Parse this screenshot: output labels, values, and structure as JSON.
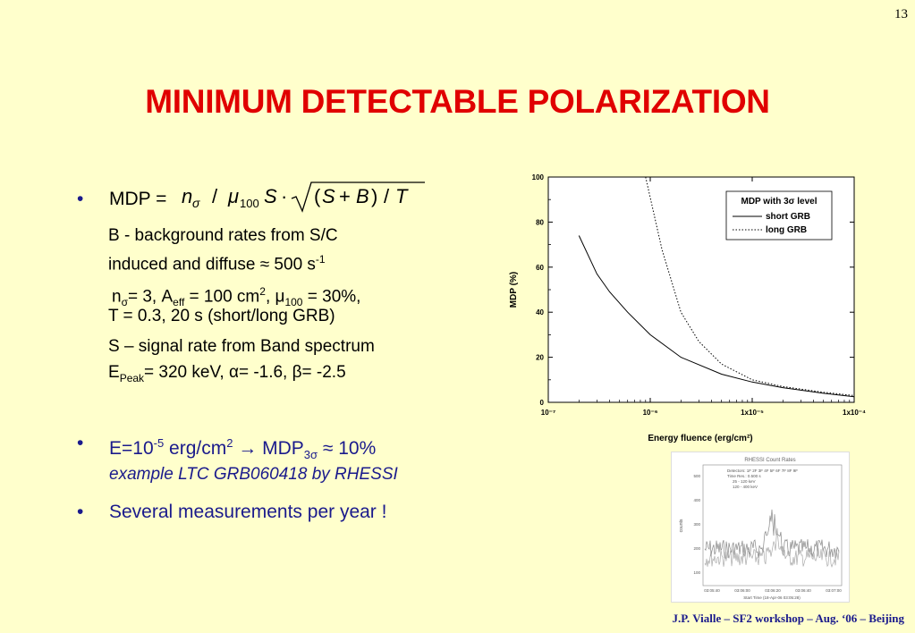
{
  "page_number": "13",
  "title": "MINIMUM DETECTABLE POLARIZATION",
  "bullets": {
    "mdp_label": "MDP =",
    "b_line1": "B - background rates from S/C",
    "b_line2": "induced and diffuse ≈ 500 s",
    "b_line2_sup": "-1",
    "n_line_a": "n",
    "n_line_sub1": "σ",
    "n_line_b": "= 3, A",
    "n_line_sub2": "eff",
    "n_line_c": " = 100 cm",
    "n_line_sup": "2",
    "n_line_d": ", μ",
    "n_line_sub3": "100",
    "n_line_e": " = 30%,",
    "t_line": "T = 0.3, 20 s (short/long GRB)",
    "s_line1": "S – signal rate from Band spectrum",
    "s_line2_a": "E",
    "s_line2_sub": "Peak",
    "s_line2_b": "= 320 keV, α= -1.6, β= -2.5",
    "e_line_a": "E=10",
    "e_line_sup1": "-5",
    "e_line_b": " erg/cm",
    "e_line_sup2": "2",
    "e_line_c": " → MDP",
    "e_line_sub": "3σ",
    "e_line_d": " ≈ 10%",
    "example": "example LTC GRB060418 by RHESSI",
    "several": "Several measurements per year !"
  },
  "footer": "J.P. Vialle – SF2 workshop – Aug. ‘06 – Beijing",
  "chart_data": {
    "type": "line",
    "xlabel": "Energy fluence (erg/cm²)",
    "ylabel": "MDP (%)",
    "xscale": "log",
    "xlim": [
      1e-07,
      0.0001
    ],
    "ylim": [
      0,
      100
    ],
    "x_ticks": [
      "10⁻⁷",
      "10⁻⁶",
      "1x10⁻⁵",
      "1x10⁻⁴"
    ],
    "y_ticks": [
      "0",
      "20",
      "40",
      "60",
      "80",
      "100"
    ],
    "legend_title": "MDP with 3σ level",
    "legend_position": "top-right",
    "series": [
      {
        "name": "short GRB",
        "style": "solid",
        "x": [
          2e-07,
          3e-07,
          4e-07,
          6e-07,
          1e-06,
          2e-06,
          5e-06,
          1e-05,
          2e-05,
          5e-05,
          0.0001
        ],
        "y": [
          74,
          57,
          49,
          40,
          30,
          20,
          12.5,
          9,
          6.5,
          4,
          2.5
        ]
      },
      {
        "name": "long GRB",
        "style": "dotted",
        "x": [
          9e-07,
          1.3e-06,
          2e-06,
          3e-06,
          5e-06,
          1e-05,
          2e-05,
          5e-05,
          0.0001
        ],
        "y": [
          100,
          68,
          40,
          27,
          17,
          10,
          7,
          4.5,
          3
        ]
      }
    ]
  },
  "rhessi_plot": {
    "title": "RHESSI Count Rates",
    "detectors": "Detectors: 1F 2F 3F 4F 5F 6F 7F 8F 9F",
    "time_res": "Time Res.: 0.500 s",
    "band1": "25 - 120 keV",
    "band2": "120 - 400 keV",
    "ylabel": "counts",
    "y_ticks": [
      "500",
      "400",
      "300",
      "200",
      "100"
    ],
    "x_ticks": [
      "03:05:40",
      "03:06:00",
      "03:06:20",
      "03:06:40",
      "03:07:00"
    ],
    "start_time": "Start Time (18-Apr-06 03:05:28)"
  }
}
